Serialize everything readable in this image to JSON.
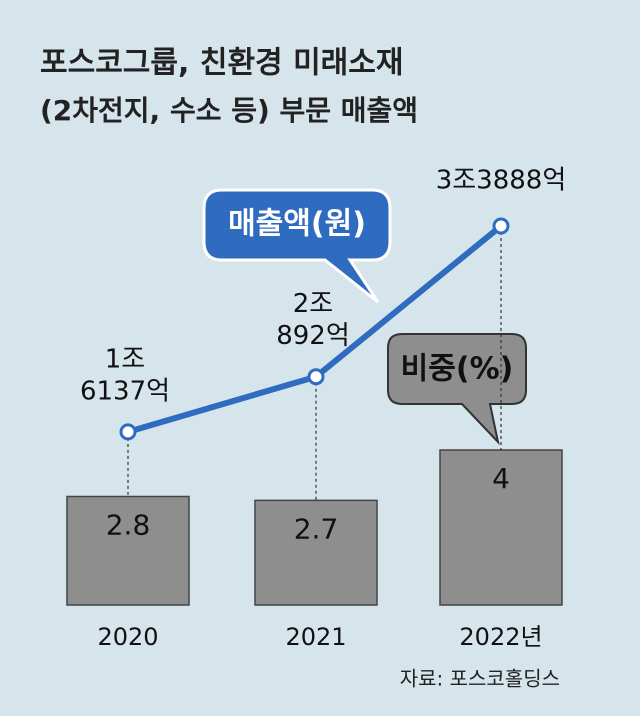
{
  "chart_data": {
    "type": "bar_line",
    "title": "포스코그룹, 친환경 미래소재",
    "subtitle": "(2차전지, 수소 등) 부문 매출액",
    "source": "자료: 포스코홀딩스",
    "categories": [
      "2020",
      "2021",
      "2022년"
    ],
    "series": [
      {
        "name": "매출액(원)",
        "type": "line",
        "color": "#2f6cc0",
        "values": [
          16137,
          20892,
          33888
        ],
        "value_labels": [
          [
            "1조",
            "6137억"
          ],
          [
            "2조",
            "892억"
          ],
          [
            "3조3888억"
          ]
        ]
      },
      {
        "name": "비중(%)",
        "type": "bar",
        "color": "#8e8e8e",
        "values": [
          2.8,
          2.7,
          4
        ]
      }
    ]
  }
}
